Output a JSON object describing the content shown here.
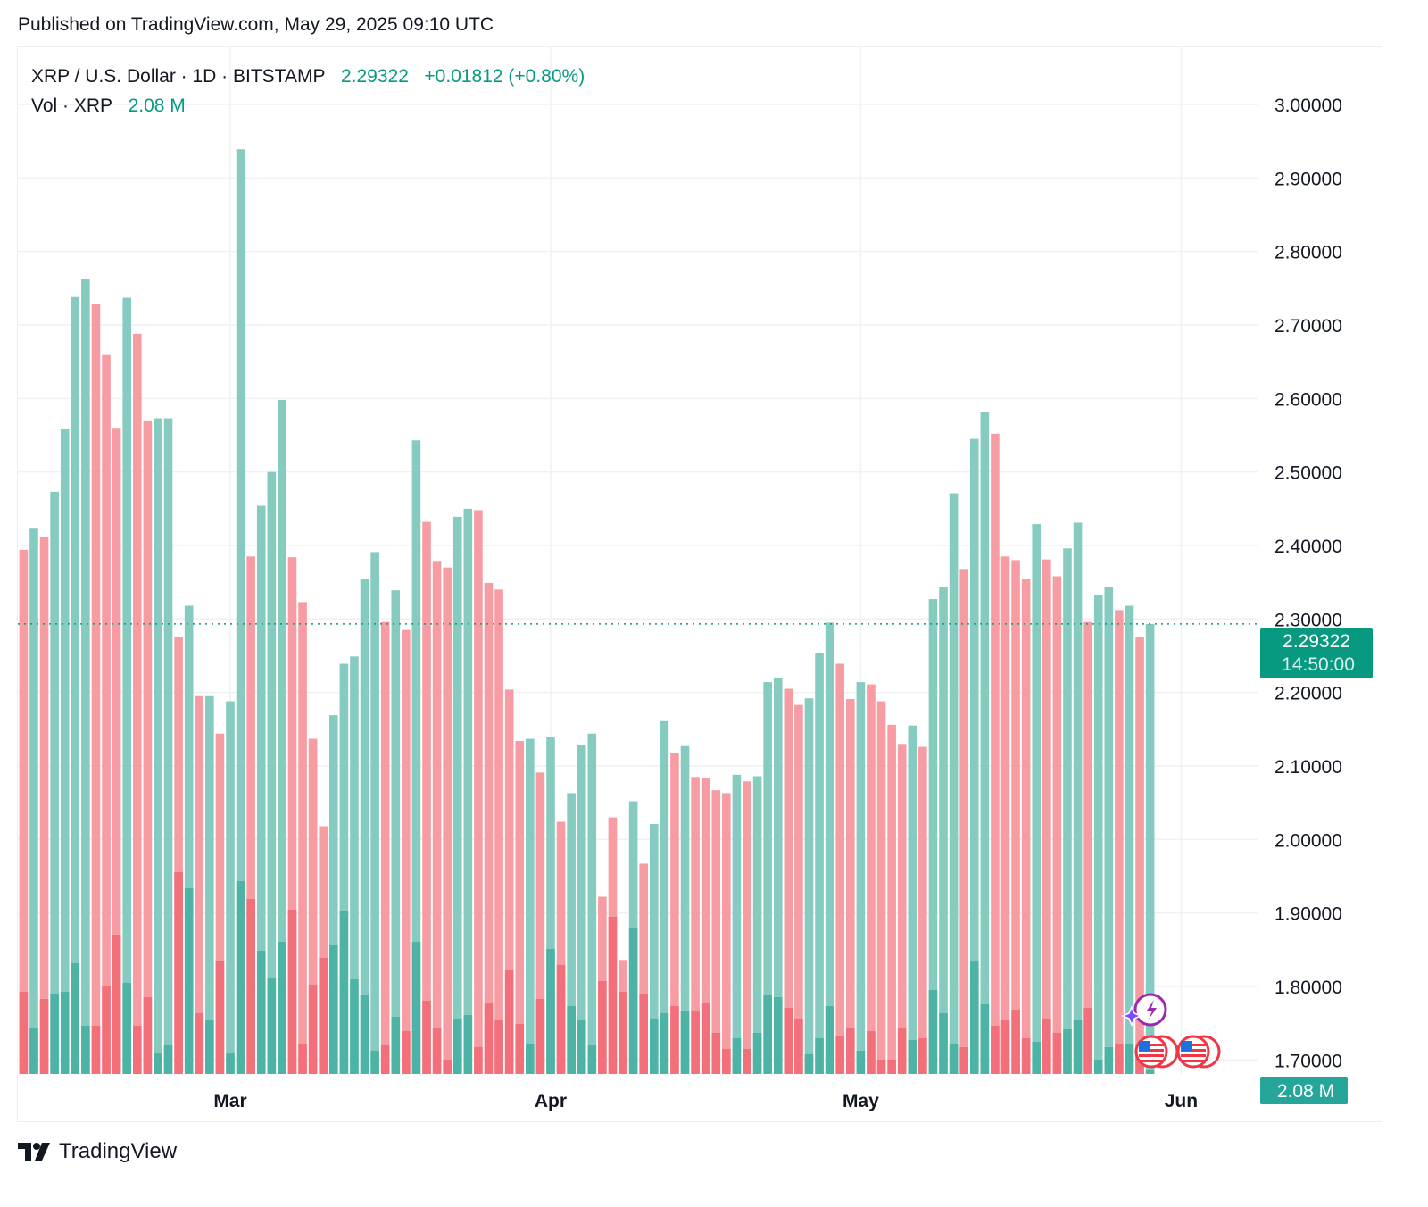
{
  "header": {
    "published": "Published on TradingView.com, May 29, 2025 09:10 UTC"
  },
  "legend": {
    "symbol": "XRP / U.S. Dollar · 1D · BITSTAMP",
    "price": "2.29322",
    "change": "+0.01812 (+0.80%)",
    "vol_label": "Vol · XRP",
    "vol_value": "2.08 M"
  },
  "price_axis": {
    "ticks": [
      "3.00000",
      "2.90000",
      "2.80000",
      "2.70000",
      "2.60000",
      "2.50000",
      "2.40000",
      "2.30000",
      "2.20000",
      "2.10000",
      "2.00000",
      "1.90000",
      "1.80000",
      "1.70000"
    ],
    "last_price_label": "2.29322",
    "countdown": "14:50:00",
    "volume_label": "2.08 M"
  },
  "time_axis": {
    "labels": [
      "Mar",
      "Apr",
      "May",
      "Jun"
    ]
  },
  "footer": {
    "brand": "TradingView"
  },
  "colors": {
    "up": "#26a69a",
    "down": "#f23645",
    "price_line": "#089981",
    "volume_label_bg": "#26a69a",
    "price_label_bg": "#089981"
  },
  "icons": [
    "lightning-event-icon",
    "us-flag-event-icon",
    "us-flag-event-icon"
  ],
  "chart_data": {
    "type": "bar",
    "style": "columns",
    "ylim": [
      1.68,
      3.05
    ],
    "grid": true,
    "dates": [
      "2025-02-08",
      "2025-02-09",
      "2025-02-10",
      "2025-02-11",
      "2025-02-12",
      "2025-02-13",
      "2025-02-14",
      "2025-02-15",
      "2025-02-16",
      "2025-02-17",
      "2025-02-18",
      "2025-02-19",
      "2025-02-20",
      "2025-02-21",
      "2025-02-22",
      "2025-02-23",
      "2025-02-24",
      "2025-02-25",
      "2025-02-26",
      "2025-02-27",
      "2025-02-28",
      "2025-03-01",
      "2025-03-02",
      "2025-03-03",
      "2025-03-04",
      "2025-03-05",
      "2025-03-06",
      "2025-03-07",
      "2025-03-08",
      "2025-03-09",
      "2025-03-10",
      "2025-03-11",
      "2025-03-12",
      "2025-03-13",
      "2025-03-14",
      "2025-03-15",
      "2025-03-16",
      "2025-03-17",
      "2025-03-18",
      "2025-03-19",
      "2025-03-20",
      "2025-03-21",
      "2025-03-22",
      "2025-03-23",
      "2025-03-24",
      "2025-03-25",
      "2025-03-26",
      "2025-03-27",
      "2025-03-28",
      "2025-03-29",
      "2025-03-30",
      "2025-03-31",
      "2025-04-01",
      "2025-04-02",
      "2025-04-03",
      "2025-04-04",
      "2025-04-05",
      "2025-04-06",
      "2025-04-07",
      "2025-04-08",
      "2025-04-09",
      "2025-04-10",
      "2025-04-11",
      "2025-04-12",
      "2025-04-13",
      "2025-04-14",
      "2025-04-15",
      "2025-04-16",
      "2025-04-17",
      "2025-04-18",
      "2025-04-19",
      "2025-04-20",
      "2025-04-21",
      "2025-04-22",
      "2025-04-23",
      "2025-04-24",
      "2025-04-25",
      "2025-04-26",
      "2025-04-27",
      "2025-04-28",
      "2025-04-29",
      "2025-04-30",
      "2025-05-01",
      "2025-05-02",
      "2025-05-03",
      "2025-05-04",
      "2025-05-05",
      "2025-05-06",
      "2025-05-07",
      "2025-05-08",
      "2025-05-09",
      "2025-05-10",
      "2025-05-11",
      "2025-05-12",
      "2025-05-13",
      "2025-05-14",
      "2025-05-15",
      "2025-05-16",
      "2025-05-17",
      "2025-05-18",
      "2025-05-19",
      "2025-05-20",
      "2025-05-21",
      "2025-05-22",
      "2025-05-23",
      "2025-05-24",
      "2025-05-25",
      "2025-05-26",
      "2025-05-27",
      "2025-05-28",
      "2025-05-29"
    ],
    "close": [
      2.419,
      2.394,
      2.424,
      2.412,
      2.473,
      2.558,
      2.738,
      2.762,
      2.728,
      2.659,
      2.56,
      2.737,
      2.688,
      2.569,
      2.573,
      2.573,
      2.276,
      2.318,
      2.195,
      2.195,
      2.144,
      2.188,
      2.939,
      2.385,
      2.454,
      2.5,
      2.598,
      2.384,
      2.323,
      2.137,
      2.018,
      2.169,
      2.239,
      2.249,
      2.355,
      2.391,
      2.296,
      2.339,
      2.285,
      2.543,
      2.432,
      2.379,
      2.37,
      2.439,
      2.45,
      2.448,
      2.349,
      2.34,
      2.204,
      2.134,
      2.137,
      2.091,
      2.139,
      2.024,
      2.063,
      2.128,
      2.144,
      1.922,
      2.03,
      1.836,
      2.052,
      1.967,
      2.021,
      2.161,
      2.117,
      2.127,
      2.085,
      2.084,
      2.067,
      2.063,
      2.088,
      2.079,
      2.086,
      2.214,
      2.219,
      2.205,
      2.183,
      2.192,
      2.253,
      2.295,
      2.239,
      2.191,
      2.214,
      2.211,
      2.188,
      2.156,
      2.13,
      2.155,
      2.126,
      2.327,
      2.344,
      2.471,
      2.368,
      2.545,
      2.582,
      2.552,
      2.385,
      2.38,
      2.354,
      2.429,
      2.381,
      2.358,
      2.396,
      2.431,
      2.296,
      2.332,
      2.344,
      2.312,
      2.318,
      2.276,
      2.29322
    ],
    "direction": [
      "up",
      "down",
      "up",
      "down",
      "up",
      "up",
      "up",
      "up",
      "down",
      "down",
      "down",
      "up",
      "down",
      "down",
      "up",
      "up",
      "down",
      "up",
      "down",
      "up",
      "down",
      "up",
      "up",
      "down",
      "up",
      "up",
      "up",
      "down",
      "down",
      "down",
      "down",
      "up",
      "up",
      "up",
      "up",
      "up",
      "down",
      "up",
      "down",
      "up",
      "down",
      "down",
      "down",
      "up",
      "up",
      "down",
      "down",
      "down",
      "down",
      "down",
      "up",
      "down",
      "up",
      "down",
      "up",
      "up",
      "up",
      "down",
      "down",
      "down",
      "up",
      "down",
      "up",
      "up",
      "down",
      "up",
      "down",
      "down",
      "down",
      "down",
      "up",
      "down",
      "up",
      "up",
      "up",
      "down",
      "down",
      "up",
      "up",
      "up",
      "down",
      "down",
      "up",
      "down",
      "down",
      "down",
      "down",
      "up",
      "down",
      "up",
      "up",
      "up",
      "down",
      "up",
      "up",
      "down",
      "down",
      "down",
      "down",
      "up",
      "down",
      "down",
      "up",
      "up",
      "down",
      "up",
      "up",
      "down",
      "up",
      "down",
      "up"
    ],
    "volume_m": [
      40,
      46,
      26,
      42,
      45,
      46,
      62,
      27,
      27,
      49,
      78,
      51,
      27,
      43,
      12,
      16,
      113,
      104,
      34,
      30,
      63,
      12,
      108,
      98,
      69,
      54,
      74,
      92,
      17,
      50,
      65,
      72,
      91,
      53,
      44,
      13,
      16,
      32,
      24,
      74,
      41,
      26,
      8,
      31,
      33,
      15,
      40,
      30,
      58,
      28,
      17,
      42,
      70,
      61,
      38,
      30,
      16,
      52,
      88,
      46,
      82,
      45,
      31,
      34,
      38,
      35,
      35,
      40,
      23,
      14,
      20,
      14,
      23,
      44,
      43,
      37,
      31,
      11,
      20,
      38,
      21,
      26,
      13,
      24,
      8,
      8,
      26,
      19,
      20,
      47,
      34,
      17,
      15,
      63,
      39,
      27,
      30,
      36,
      20,
      18,
      31,
      23,
      25,
      30,
      37,
      8,
      15,
      17,
      17,
      10,
      2.08
    ]
  }
}
